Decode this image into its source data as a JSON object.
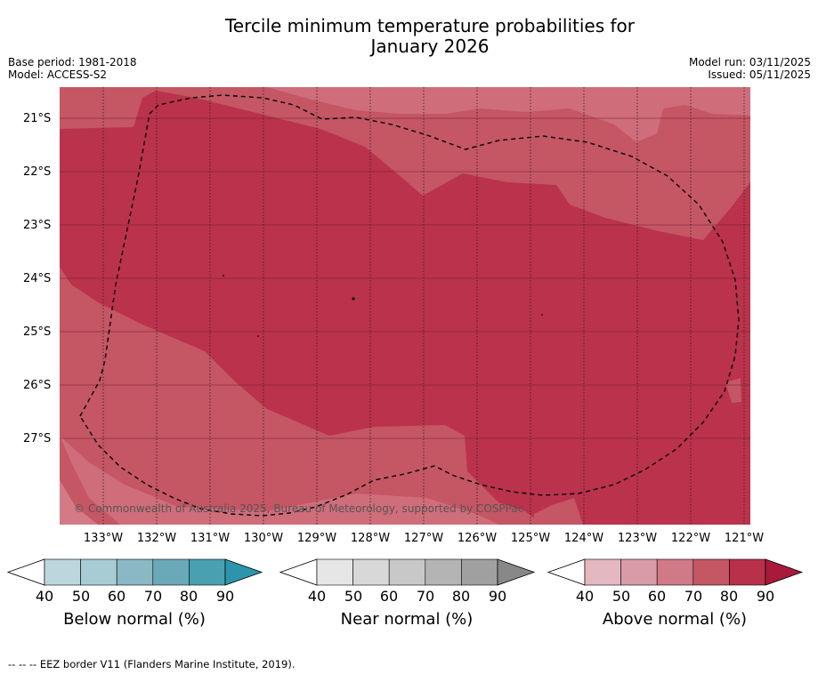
{
  "title_line1": "Tercile minimum temperature probabilities for",
  "title_line2": "January 2026",
  "base_period": "Base period: 1981-2018",
  "model": "Model: ACCESS-S2",
  "model_run": "Model run: 03/11/2025",
  "issued": "Issued: 05/11/2025",
  "copyright": "© Commonwealth of Australia 2025, Bureau of Meteorology, supported by COSPPac",
  "lat_labels": [
    "21°S",
    "22°S",
    "23°S",
    "24°S",
    "25°S",
    "26°S",
    "27°S"
  ],
  "lon_labels": [
    "133°W",
    "132°W",
    "131°W",
    "130°W",
    "129°W",
    "128°W",
    "127°W",
    "126°W",
    "125°W",
    "124°W",
    "123°W",
    "122°W",
    "121°W"
  ],
  "colorbars": [
    {
      "title": "Below normal (%)",
      "ticks": [
        "40",
        "50",
        "60",
        "70",
        "80",
        "90"
      ],
      "colors": [
        "#ffffff",
        "#bcd6dd",
        "#a8ccd4",
        "#8ab8c4",
        "#6aaab8",
        "#48a0b0",
        "#2c95ab"
      ]
    },
    {
      "title": "Near normal (%)",
      "ticks": [
        "40",
        "50",
        "60",
        "70",
        "80",
        "90"
      ],
      "colors": [
        "#ffffff",
        "#e6e6e6",
        "#d8d8d8",
        "#c8c8c8",
        "#b4b4b4",
        "#a0a0a0",
        "#888888"
      ]
    },
    {
      "title": "Above normal (%)",
      "ticks": [
        "40",
        "50",
        "60",
        "70",
        "80",
        "90"
      ],
      "colors": [
        "#ffffff",
        "#e4b8c0",
        "#d99ba5",
        "#cf7a86",
        "#c55664",
        "#b83049",
        "#a91a3a"
      ]
    }
  ],
  "footnote": "--  --  -- EEZ border V11 (Flanders Marine Institute, 2019)."
}
